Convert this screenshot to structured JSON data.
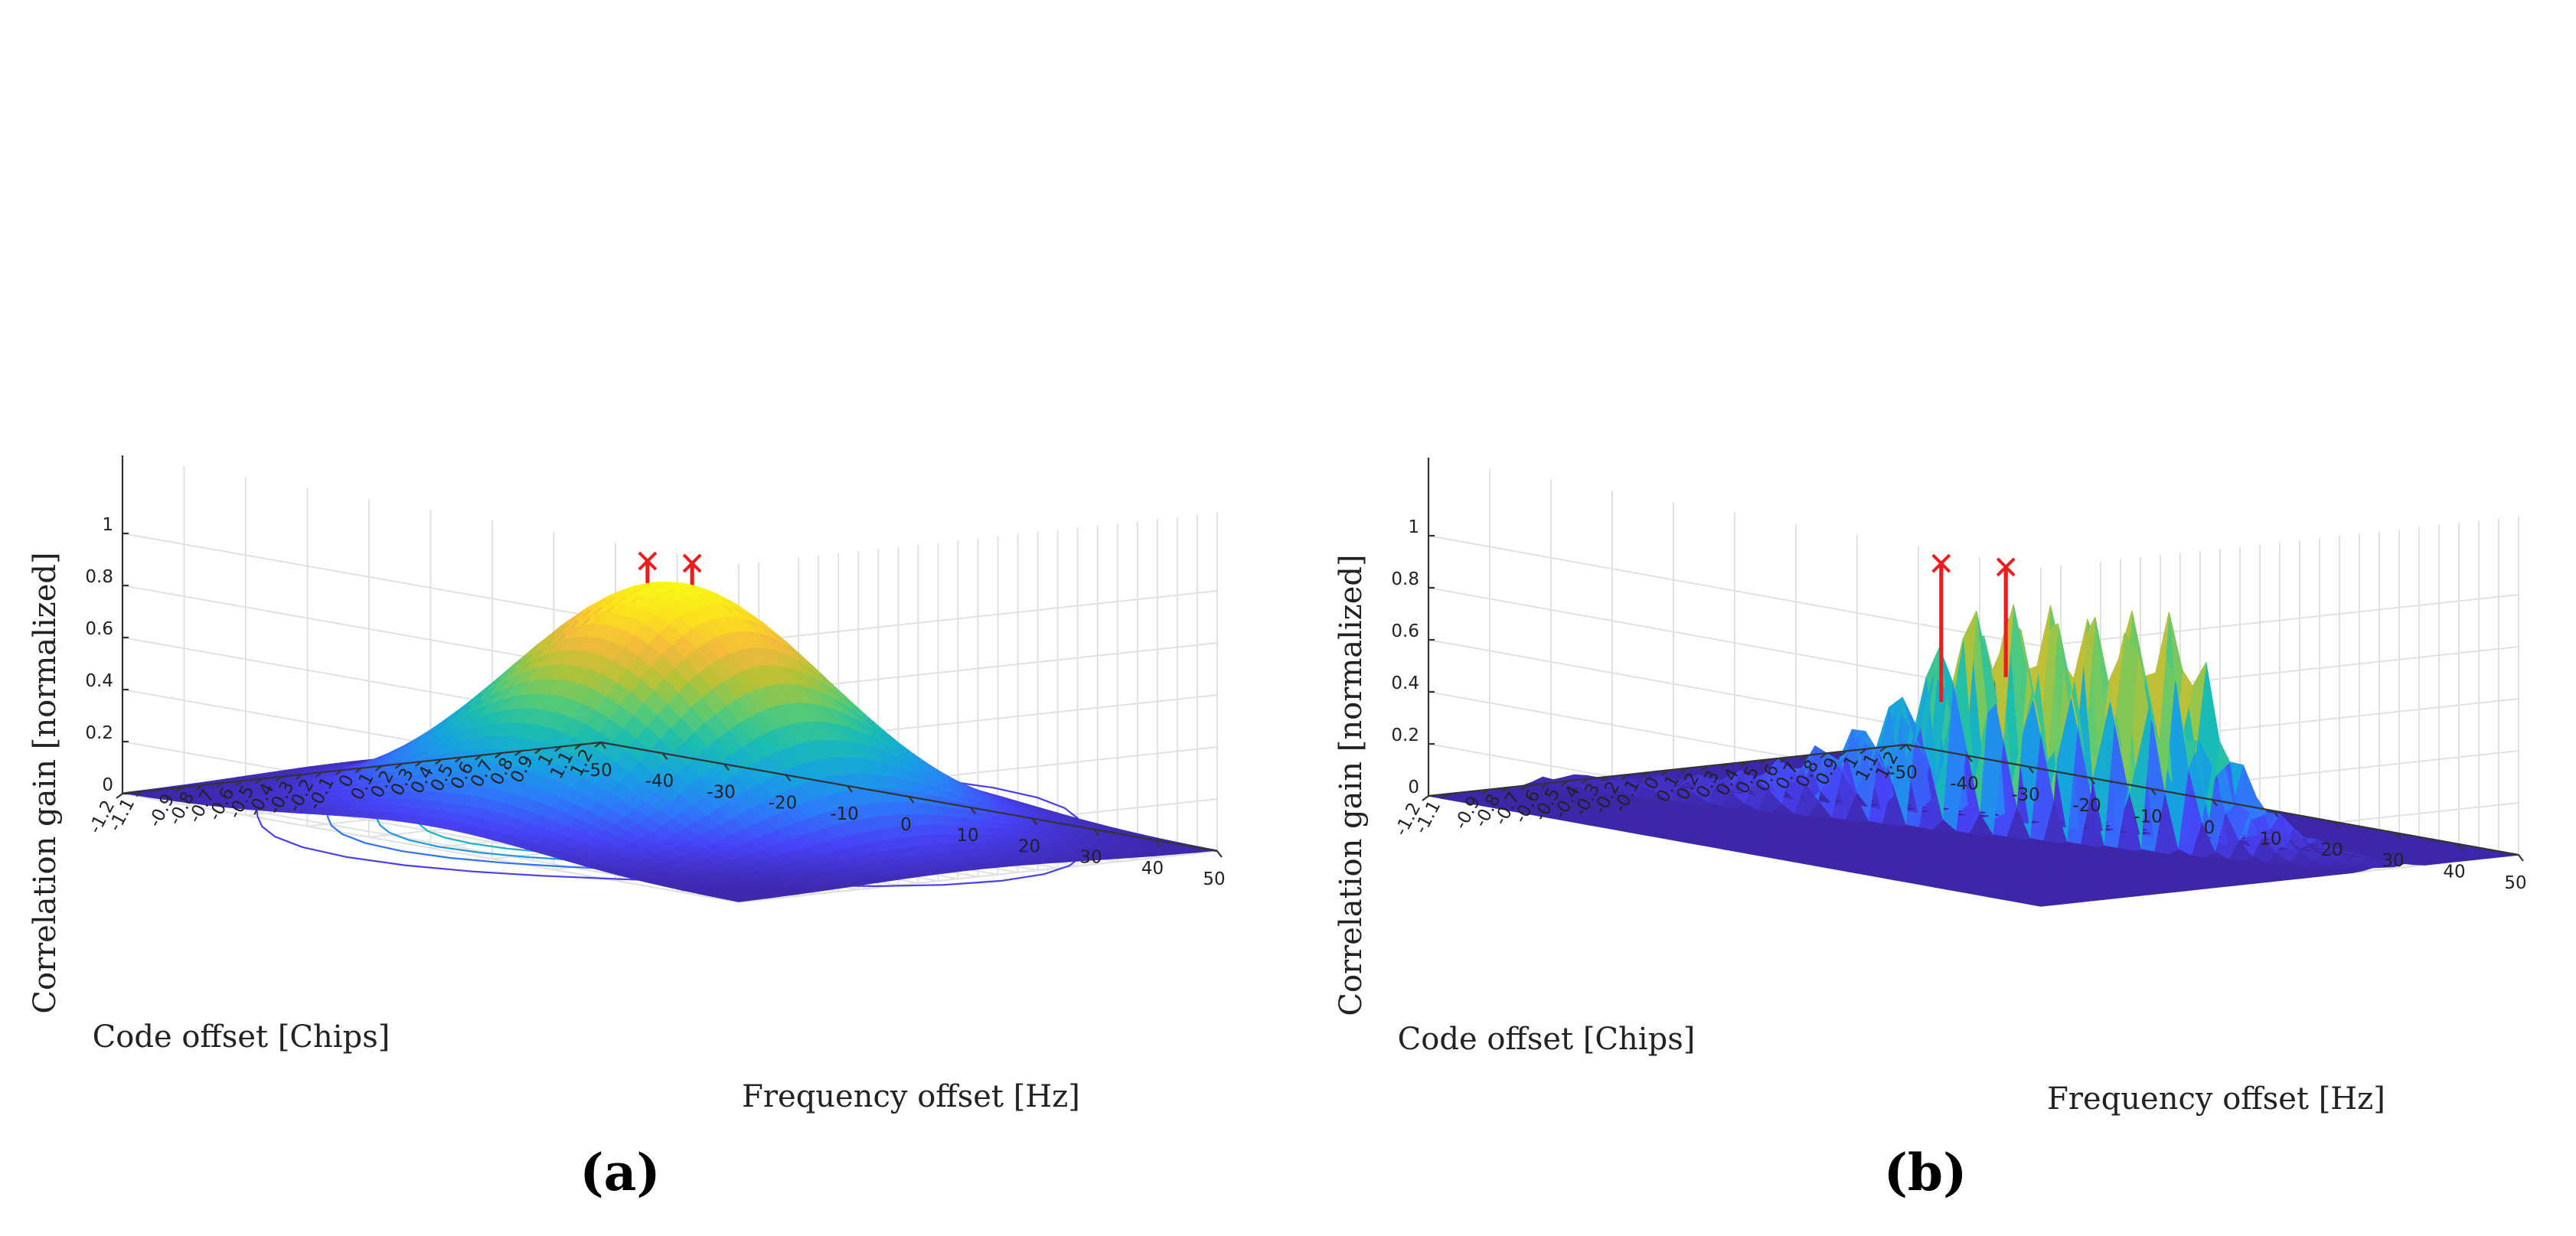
{
  "chart_data": [
    {
      "type": "surface3d",
      "panel": "(a)",
      "zlabel": "Correlation gain [normalized]",
      "xlabel": "Code offset [Chips]",
      "ylabel": "Frequency offset [Hz]",
      "x_ticks": [
        "-1.2",
        "-1.1",
        "-0.9",
        "-0.8",
        "-0.7",
        "-0.6",
        "-0.5",
        "-0.4",
        "-0.3",
        "-0.2",
        "-0.1",
        "0",
        "0.1",
        "0.2",
        "0.3",
        "0.4",
        "0.5",
        "0.6",
        "0.7",
        "0.8",
        "0.9",
        "1",
        "1.1",
        "1.2"
      ],
      "y_ticks": [
        "-50",
        "-40",
        "-30",
        "-20",
        "-10",
        "0",
        "10",
        "20",
        "30",
        "40",
        "50"
      ],
      "z_ticks": [
        "0",
        "0.2",
        "0.4",
        "0.6",
        "0.8",
        "1"
      ],
      "xlim": [
        -1.2,
        1.2
      ],
      "ylim": [
        -50,
        50
      ],
      "zlim": [
        0,
        1
      ],
      "surface": {
        "shape": "broad gaussian",
        "peak": 0.92,
        "x_width": 0.55,
        "y_width": 19
      },
      "contour_levels": 9,
      "peak_markers": [
        {
          "x": -0.05,
          "y": -2,
          "z": 1.0
        },
        {
          "x": 0.05,
          "y": 2,
          "z": 1.0
        }
      ]
    },
    {
      "type": "surface3d",
      "panel": "(b)",
      "zlabel": "Correlation gain [normalized]",
      "xlabel": "Code offset [Chips]",
      "ylabel": "Frequency offset [Hz]",
      "x_ticks": [
        "-1.2",
        "-1.1",
        "-0.9",
        "-0.8",
        "-0.7",
        "-0.6",
        "-0.5",
        "-0.4",
        "-0.3",
        "-0.2",
        "-0.1",
        "0",
        "0.1",
        "0.2",
        "0.3",
        "0.4",
        "0.5",
        "0.6",
        "0.7",
        "0.8",
        "0.9",
        "1",
        "1.1",
        "1.2"
      ],
      "y_ticks": [
        "-50",
        "-40",
        "-30",
        "-20",
        "-10",
        "0",
        "10",
        "20",
        "30",
        "40",
        "50"
      ],
      "z_ticks": [
        "0",
        "0.2",
        "0.4",
        "0.6",
        "0.8",
        "1"
      ],
      "xlim": [
        -1.2,
        1.2
      ],
      "ylim": [
        -50,
        50
      ],
      "zlim": [
        0,
        1
      ],
      "surface": {
        "shape": "twin narrow ridges",
        "peak": 0.9,
        "x_width": 0.09,
        "y_width": 4,
        "ridge_slope": 9,
        "ridge_offsets": [
          -0.07,
          0.07
        ]
      },
      "contour_levels": 7,
      "peak_markers": [
        {
          "x": -0.07,
          "y": -3,
          "z": 1.0
        },
        {
          "x": 0.07,
          "y": 3,
          "z": 1.0
        }
      ]
    }
  ],
  "colormap": [
    "#3e26a8",
    "#4743f8",
    "#2c7df9",
    "#16a3e0",
    "#1bbdb0",
    "#5acb72",
    "#b4c237",
    "#f5b93c",
    "#fbe11d",
    "#f9fb15"
  ],
  "marker_color": "#ee1c1c"
}
